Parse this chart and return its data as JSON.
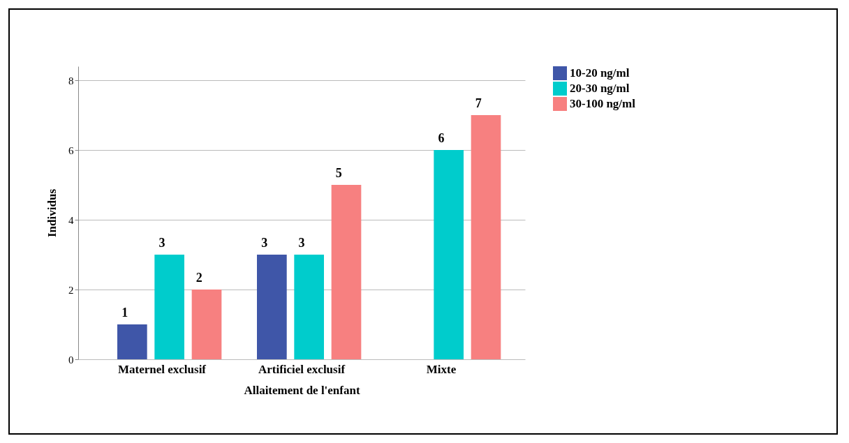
{
  "chart_data": {
    "type": "bar",
    "xlabel": "Allaitement de l'enfant",
    "ylabel": "Individus",
    "categories": [
      "Maternel exclusif",
      "Artificiel exclusif",
      "Mixte"
    ],
    "series": [
      {
        "name": "10-20 ng/ml",
        "color": "#3f56a8",
        "values": [
          1,
          3,
          null
        ]
      },
      {
        "name": "20-30 ng/ml",
        "color": "#00cccc",
        "values": [
          3,
          3,
          6
        ]
      },
      {
        "name": "30-100 ng/ml",
        "color": "#f78080",
        "values": [
          2,
          5,
          7
        ]
      }
    ],
    "ylim": [
      0,
      8.4
    ],
    "yticks": [
      0,
      2,
      4,
      6,
      8
    ],
    "grid": "y",
    "legend": "top right",
    "data_labels": true
  }
}
